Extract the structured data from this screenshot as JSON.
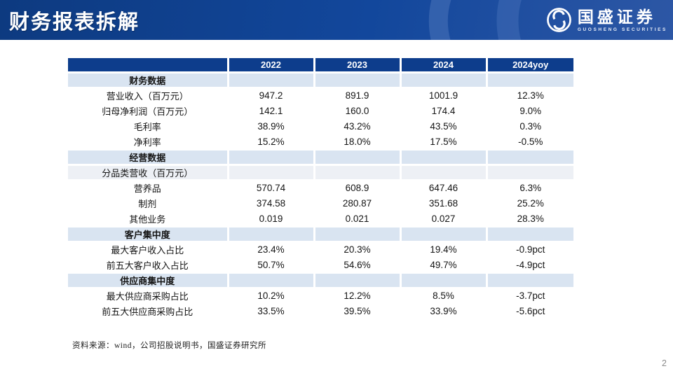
{
  "slide": {
    "title": "财务报表拆解",
    "page_number": "2"
  },
  "logo": {
    "name": "国盛证券",
    "subtitle": "GUOSHENG SECURITIES"
  },
  "colors": {
    "banner_gradient_left": "#0d3a80",
    "banner_gradient_right": "#2d57a5",
    "watermark_arc": "#4a74ba",
    "table_header_blue": "#0d3d8c",
    "section_row_blue": "#d9e4f1",
    "subsection_row_blue": "#edf0f5",
    "body_text": "#141414"
  },
  "table": {
    "columns": [
      "",
      "2022",
      "2023",
      "2024",
      "2024yoy"
    ],
    "rows": [
      {
        "type": "section",
        "label": "财务数据",
        "values": [
          "",
          "",
          "",
          ""
        ]
      },
      {
        "type": "data",
        "label": "营业收入（百万元）",
        "values": [
          "947.2",
          "891.9",
          "1001.9",
          "12.3%"
        ]
      },
      {
        "type": "data",
        "label": "归母净利润（百万元）",
        "values": [
          "142.1",
          "160.0",
          "174.4",
          "9.0%"
        ]
      },
      {
        "type": "data",
        "label": "毛利率",
        "values": [
          "38.9%",
          "43.2%",
          "43.5%",
          "0.3%"
        ]
      },
      {
        "type": "data",
        "label": "净利率",
        "values": [
          "15.2%",
          "18.0%",
          "17.5%",
          "-0.5%"
        ]
      },
      {
        "type": "section",
        "label": "经营数据",
        "values": [
          "",
          "",
          "",
          ""
        ]
      },
      {
        "type": "sub",
        "label": "分品类营收（百万元）",
        "values": [
          "",
          "",
          "",
          ""
        ]
      },
      {
        "type": "data",
        "label": "营养品",
        "values": [
          "570.74",
          "608.9",
          "647.46",
          "6.3%"
        ]
      },
      {
        "type": "data",
        "label": "制剂",
        "values": [
          "374.58",
          "280.87",
          "351.68",
          "25.2%"
        ]
      },
      {
        "type": "data",
        "label": "其他业务",
        "values": [
          "0.019",
          "0.021",
          "0.027",
          "28.3%"
        ]
      },
      {
        "type": "section",
        "label": "客户集中度",
        "values": [
          "",
          "",
          "",
          ""
        ]
      },
      {
        "type": "data",
        "label": "最大客户收入占比",
        "values": [
          "23.4%",
          "20.3%",
          "19.4%",
          "-0.9pct"
        ]
      },
      {
        "type": "data",
        "label": "前五大客户收入占比",
        "values": [
          "50.7%",
          "54.6%",
          "49.7%",
          "-4.9pct"
        ]
      },
      {
        "type": "section",
        "label": "供应商集中度",
        "values": [
          "",
          "",
          "",
          ""
        ]
      },
      {
        "type": "data",
        "label": "最大供应商采购占比",
        "values": [
          "10.2%",
          "12.2%",
          "8.5%",
          "-3.7pct"
        ]
      },
      {
        "type": "data",
        "label": "前五大供应商采购占比",
        "values": [
          "33.5%",
          "39.5%",
          "33.9%",
          "-5.6pct"
        ]
      }
    ]
  },
  "footer": {
    "source": "资料来源：wind，公司招股说明书，国盛证券研究所"
  }
}
